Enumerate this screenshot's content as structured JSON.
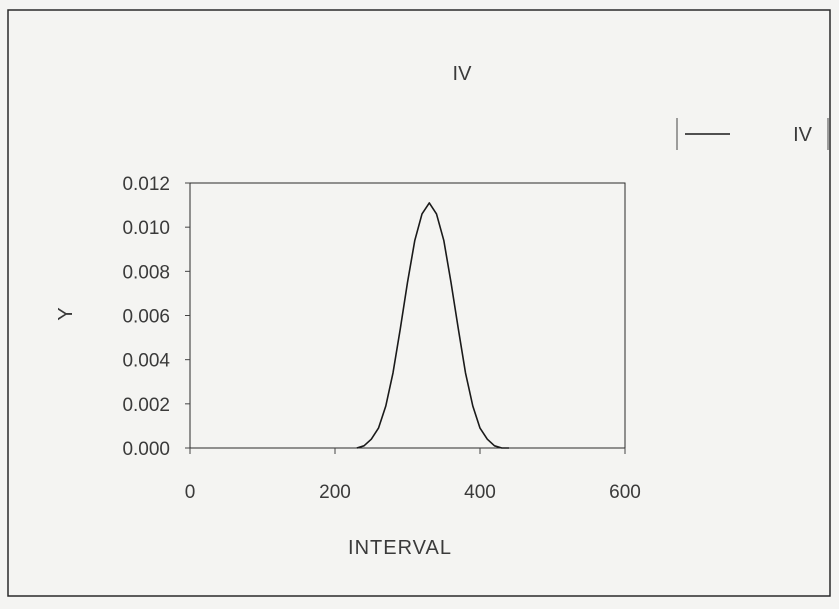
{
  "chart_data": {
    "type": "line",
    "title": "IV",
    "xlabel": "INTERVAL",
    "ylabel": "Y",
    "xlim": [
      0,
      600
    ],
    "ylim": [
      0,
      0.012
    ],
    "x_ticks": [
      "0",
      "200",
      "400",
      "600"
    ],
    "y_ticks": [
      "0.000",
      "0.002",
      "0.004",
      "0.006",
      "0.008",
      "0.010",
      "0.012"
    ],
    "grid": false,
    "legend_position": "top-right",
    "series": [
      {
        "name": "IV",
        "color": "#1a1a1a",
        "x": [
          230,
          240,
          250,
          260,
          270,
          280,
          290,
          300,
          310,
          320,
          330,
          340,
          350,
          360,
          370,
          380,
          390,
          400,
          410,
          420,
          430,
          440
        ],
        "y": [
          0.0,
          0.0001,
          0.0004,
          0.0009,
          0.0019,
          0.0034,
          0.0054,
          0.0075,
          0.0094,
          0.0106,
          0.0111,
          0.0106,
          0.0094,
          0.0075,
          0.0054,
          0.0034,
          0.0019,
          0.0009,
          0.0004,
          0.0001,
          0.0,
          0.0
        ]
      }
    ]
  }
}
